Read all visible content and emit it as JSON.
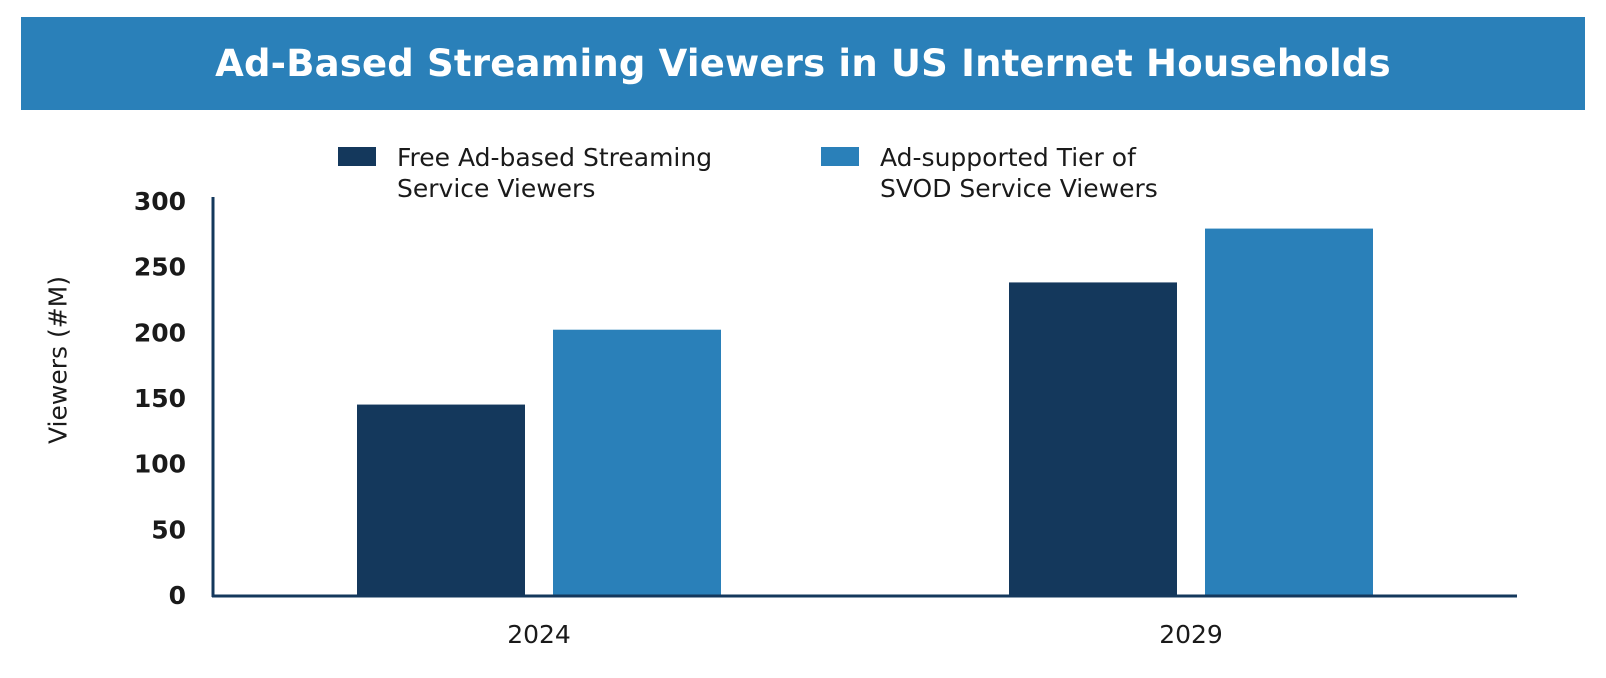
{
  "chart_data": {
    "type": "bar",
    "title": "Ad-Based Streaming Viewers in US Internet Households",
    "xlabel": "",
    "ylabel": "Viewers (#M)",
    "categories": [
      "2024",
      "2029"
    ],
    "series": [
      {
        "name": "Free Ad-based Streaming Service Viewers",
        "values": [
          145,
          238
        ],
        "color": "#14385c"
      },
      {
        "name": "Ad-supported Tier of SVOD Service Viewers",
        "values": [
          202,
          279
        ],
        "color": "#2a80b9"
      }
    ],
    "ylim": [
      0,
      300
    ],
    "yticks": [
      "0",
      "50",
      "100",
      "150",
      "200",
      "250",
      "300"
    ],
    "grid": false,
    "legend_position": "top-center"
  },
  "legend": {
    "item1_line1": "Free Ad-based Streaming",
    "item1_line2": "Service Viewers",
    "item2_line1": "Ad-supported Tier of",
    "item2_line2": "SVOD Service Viewers"
  },
  "colors": {
    "banner": "#2a80b9",
    "axis": "#14385c"
  }
}
